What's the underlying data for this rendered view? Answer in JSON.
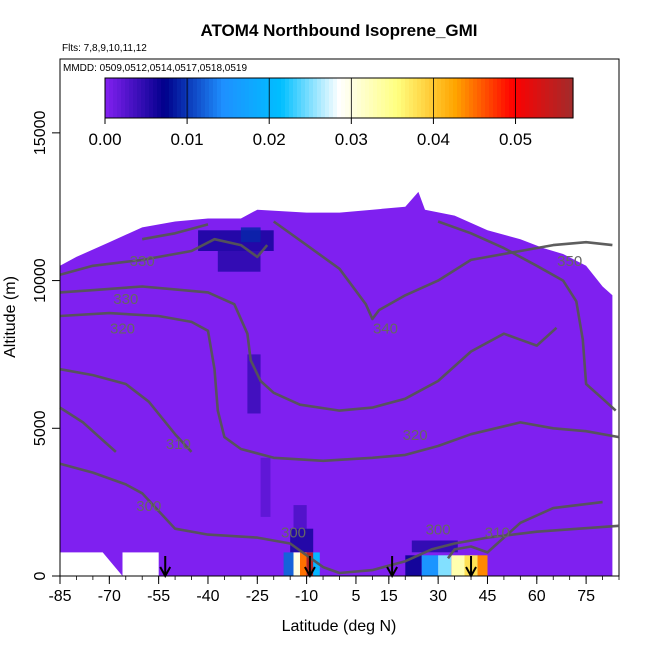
{
  "chart_data": {
    "type": "heatmap",
    "title": "ATOM4 Northbound Isoprene_GMI",
    "annotations": [
      "Flts: 7,8,9,10,11,12",
      "MMDD: 0509,0512,0514,0517,0518,0519"
    ],
    "xlabel": "Latitude (deg N)",
    "ylabel": "Altitude (m)",
    "xlim": [
      -85,
      85
    ],
    "ylim": [
      0,
      17500
    ],
    "x_ticks": [
      -85,
      -70,
      -55,
      -40,
      -25,
      -10,
      5,
      15,
      30,
      45,
      60,
      75
    ],
    "y_ticks": [
      0,
      5000,
      10000,
      15000
    ],
    "colorbar": {
      "ticks": [
        "0.00",
        "0.01",
        "0.02",
        "0.03",
        "0.04",
        "0.05"
      ],
      "range": [
        0,
        0.057
      ],
      "placement": "top",
      "colors": [
        "#7f1fee",
        "#00008b",
        "#1e90ff",
        "#00bfff",
        "#ffffff",
        "#ffff80",
        "#ffa500",
        "#ff0000",
        "#a52a2a"
      ]
    },
    "background_value": 0.0,
    "background_color": "#7f20f0",
    "contour_color": "#555555",
    "grid": false,
    "contour_labels": [
      {
        "lat": -60,
        "alt": 10500,
        "text": "330"
      },
      {
        "lat": -65,
        "alt": 9200,
        "text": "330"
      },
      {
        "lat": -66,
        "alt": 8200,
        "text": "320"
      },
      {
        "lat": -49,
        "alt": 4300,
        "text": "310"
      },
      {
        "lat": -58,
        "alt": 2200,
        "text": "300"
      },
      {
        "lat": -14,
        "alt": 1300,
        "text": "300"
      },
      {
        "lat": 14,
        "alt": 8200,
        "text": "340"
      },
      {
        "lat": 23,
        "alt": 4600,
        "text": "320"
      },
      {
        "lat": 30,
        "alt": 1400,
        "text": "300"
      },
      {
        "lat": 48,
        "alt": 1300,
        "text": "310"
      },
      {
        "lat": 70,
        "alt": 10500,
        "text": "350"
      }
    ],
    "flight_arrows_lat": [
      -53,
      -9,
      16,
      40
    ],
    "hotspots": [
      {
        "lat": -9,
        "alt": 300,
        "value": 0.056
      },
      {
        "lat": 38,
        "alt": 200,
        "value": 0.04
      },
      {
        "lat": 34,
        "alt": 250,
        "value": 0.02
      },
      {
        "lat": -13,
        "alt": 300,
        "value": 0.015
      },
      {
        "lat": -26,
        "alt": 11200,
        "value": 0.008
      },
      {
        "lat": -36,
        "alt": 11400,
        "value": 0.006
      }
    ]
  }
}
